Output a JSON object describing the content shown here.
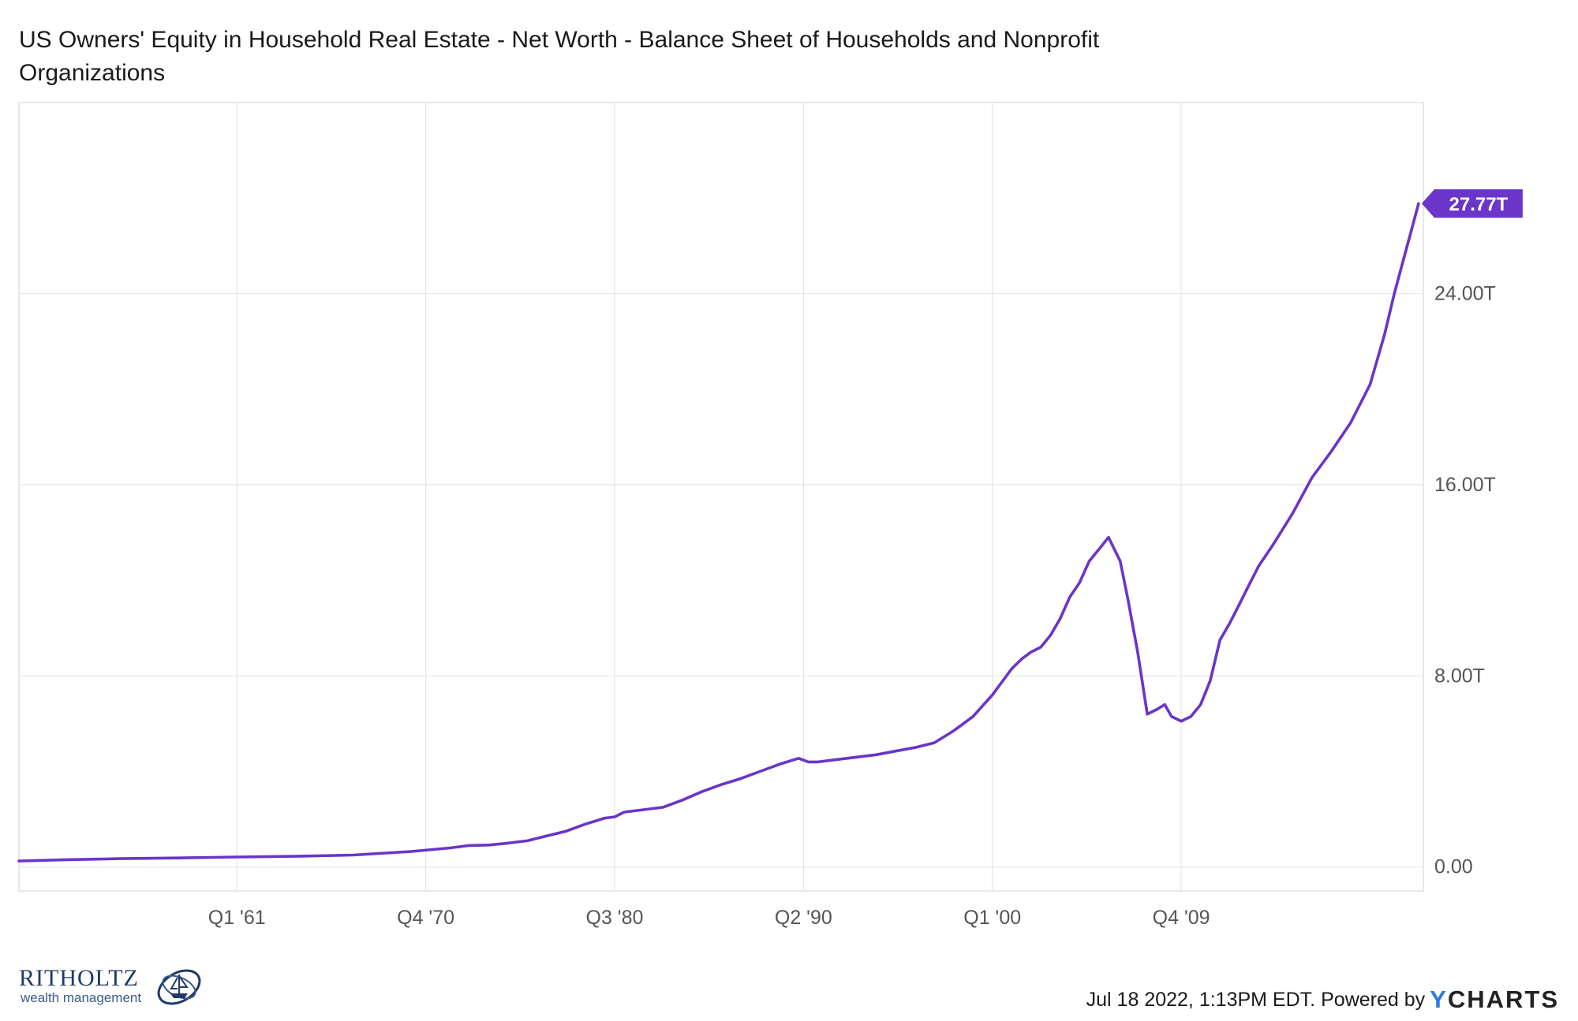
{
  "chart_data": {
    "type": "line",
    "title": "US Owners' Equity in Household Real Estate - Net Worth - Balance Sheet of Households and Nonprofit Organizations",
    "x_ticks": [
      "Q1 '61",
      "Q4 '70",
      "Q3 '80",
      "Q2 '90",
      "Q1 '00",
      "Q4 '09"
    ],
    "x_tick_positions": [
      1961.0,
      1970.75,
      1980.5,
      1990.25,
      2000.0,
      2009.75
    ],
    "y_ticks": [
      "0.00",
      "8.00T",
      "16.00T",
      "24.00T"
    ],
    "y_tick_values": [
      0,
      8,
      16,
      24
    ],
    "xlim": [
      1949.75,
      2022.25
    ],
    "ylim": [
      -1.0,
      32.0
    ],
    "grid": true,
    "y_axis_side": "right",
    "last_value_label": "27.77T",
    "series": [
      {
        "color": "#6a35c8",
        "x": [
          1949.75,
          1952,
          1955,
          1958,
          1961,
          1964,
          1967,
          1970,
          1972,
          1973,
          1974,
          1975,
          1976,
          1977,
          1978,
          1979,
          1980,
          1980.5,
          1981,
          1982,
          1983,
          1984,
          1985,
          1986,
          1987,
          1988,
          1989,
          1990,
          1990.5,
          1991,
          1992,
          1993,
          1994,
          1995,
          1996,
          1997,
          1998,
          1999,
          2000,
          2001,
          2001.5,
          2002,
          2002.5,
          2003,
          2003.5,
          2004,
          2004.5,
          2005,
          2005.5,
          2006,
          2006.3,
          2006.6,
          2007,
          2007.5,
          2008,
          2008.5,
          2008.9,
          2009.25,
          2009.75,
          2010.25,
          2010.75,
          2011.25,
          2011.75,
          2012.25,
          2012.75,
          2013.25,
          2013.75,
          2014.5,
          2015.5,
          2016.5,
          2017.5,
          2018.5,
          2019.5,
          2020.25,
          2020.75,
          2021.25,
          2021.75,
          2022.0
        ],
        "values": [
          0.25,
          0.3,
          0.35,
          0.38,
          0.42,
          0.45,
          0.5,
          0.65,
          0.8,
          0.9,
          0.92,
          1.0,
          1.1,
          1.3,
          1.5,
          1.8,
          2.05,
          2.1,
          2.3,
          2.4,
          2.5,
          2.8,
          3.15,
          3.45,
          3.7,
          4.0,
          4.3,
          4.55,
          4.4,
          4.4,
          4.5,
          4.6,
          4.7,
          4.85,
          5.0,
          5.2,
          5.7,
          6.3,
          7.2,
          8.3,
          8.7,
          9.0,
          9.2,
          9.7,
          10.4,
          11.3,
          11.9,
          12.8,
          13.3,
          13.8,
          13.3,
          12.8,
          11.2,
          9.0,
          6.4,
          6.6,
          6.8,
          6.3,
          6.1,
          6.3,
          6.8,
          7.8,
          9.5,
          10.2,
          11.0,
          11.8,
          12.6,
          13.5,
          14.8,
          16.3,
          17.4,
          18.6,
          20.2,
          22.3,
          24.0,
          25.5,
          27.0,
          27.77
        ]
      }
    ]
  },
  "footer": {
    "timestamp": "Jul 18 2022, 1:13PM EDT.",
    "powered_by": "Powered by",
    "brand_y": "Y",
    "brand_rest": "CHARTS"
  },
  "logo": {
    "name": "RITHOLTZ",
    "subtitle": "wealth management"
  }
}
